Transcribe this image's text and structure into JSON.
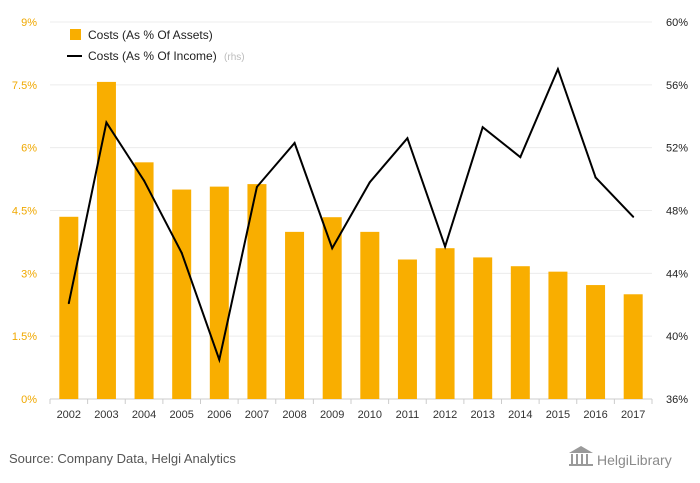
{
  "chart_data": {
    "type": "bar",
    "categories": [
      "2002",
      "2003",
      "2004",
      "2005",
      "2006",
      "2007",
      "2008",
      "2009",
      "2010",
      "2011",
      "2012",
      "2013",
      "2014",
      "2015",
      "2016",
      "2017"
    ],
    "series": [
      {
        "name": "Costs (As % Of Assets)",
        "type": "bar",
        "axis": "left",
        "color": "#f9ae00",
        "values": [
          4.35,
          7.57,
          5.65,
          5.0,
          5.07,
          5.13,
          3.99,
          4.34,
          3.99,
          3.33,
          3.6,
          3.38,
          3.17,
          3.04,
          2.72,
          2.5
        ]
      },
      {
        "name": "Costs (As % Of Income)",
        "note": "(rhs)",
        "type": "line",
        "axis": "right",
        "color": "#000000",
        "values": [
          42.1,
          53.6,
          49.9,
          45.3,
          38.5,
          49.5,
          52.3,
          45.6,
          49.8,
          52.6,
          45.7,
          53.3,
          51.4,
          57.0,
          50.1,
          47.6
        ]
      }
    ],
    "y_left": {
      "ylim": [
        0,
        9
      ],
      "ticks": [
        "0%",
        "1.5%",
        "3%",
        "4.5%",
        "6%",
        "7.5%",
        "9%"
      ],
      "tick_values": [
        0,
        1.5,
        3,
        4.5,
        6,
        7.5,
        9
      ]
    },
    "y_right": {
      "ylim": [
        36,
        60
      ],
      "ticks": [
        "36%",
        "40%",
        "44%",
        "48%",
        "52%",
        "56%",
        "60%"
      ],
      "tick_values": [
        36,
        40,
        44,
        48,
        52,
        56,
        60
      ]
    },
    "grid": true,
    "legend_position": "top-left"
  },
  "footer": {
    "source": "Source: Company Data, Helgi Analytics",
    "brand": "HelgiLibrary"
  }
}
